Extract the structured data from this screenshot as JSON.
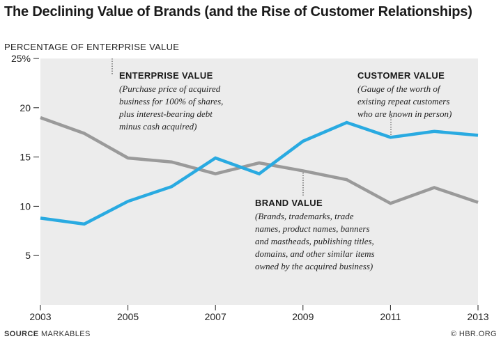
{
  "chart_data": {
    "type": "line",
    "title": "The Declining Value of Brands (and the Rise of Customer Relationships)",
    "ylabel": "PERCENTAGE OF ENTERPRISE VALUE",
    "xlabel": "",
    "x": [
      2003,
      2004,
      2005,
      2006,
      2007,
      2008,
      2009,
      2010,
      2011,
      2012,
      2013
    ],
    "x_tick_labels": [
      "2003",
      "2005",
      "2007",
      "2009",
      "2011",
      "2013"
    ],
    "x_tick_values": [
      2003,
      2005,
      2007,
      2009,
      2011,
      2013
    ],
    "y_tick_labels": [
      "25%",
      "20",
      "15",
      "10",
      "5"
    ],
    "y_tick_values": [
      25,
      20,
      15,
      10,
      5
    ],
    "xlim": [
      2003,
      2013
    ],
    "ylim": [
      0,
      25
    ],
    "grid": false,
    "series": [
      {
        "name": "Brand Value",
        "color": "#9a9a9a",
        "values": [
          19.0,
          17.4,
          14.9,
          14.5,
          13.3,
          14.4,
          13.6,
          12.7,
          10.3,
          11.9,
          10.4
        ]
      },
      {
        "name": "Customer Value",
        "color": "#29aae1",
        "values": [
          8.8,
          8.2,
          10.5,
          12.0,
          14.9,
          13.3,
          16.6,
          18.5,
          17.0,
          17.6,
          17.2
        ]
      }
    ],
    "annotations": {
      "enterprise": {
        "title": "ENTERPRISE VALUE",
        "lines": [
          "(Purchase price of acquired",
          "business for 100% of shares,",
          "plus interest-bearing debt",
          "minus cash acquired)"
        ]
      },
      "customer": {
        "title": "CUSTOMER VALUE",
        "lines": [
          "(Gauge of the worth of",
          "existing repeat customers",
          "who are known in person)"
        ]
      },
      "brand": {
        "title": "BRAND VALUE",
        "lines": [
          "(Brands, trademarks, trade",
          "names, product names, banners",
          "and mastheads, publishing titles,",
          "domains, and other similar items",
          "owned by the acquired business)"
        ]
      }
    },
    "colors": {
      "plot_background": "#ececec",
      "annotation_leader": "#555555"
    }
  },
  "footer": {
    "source_label": "SOURCE",
    "source_text": "MARKABLES",
    "credit": "© HBR.ORG"
  }
}
